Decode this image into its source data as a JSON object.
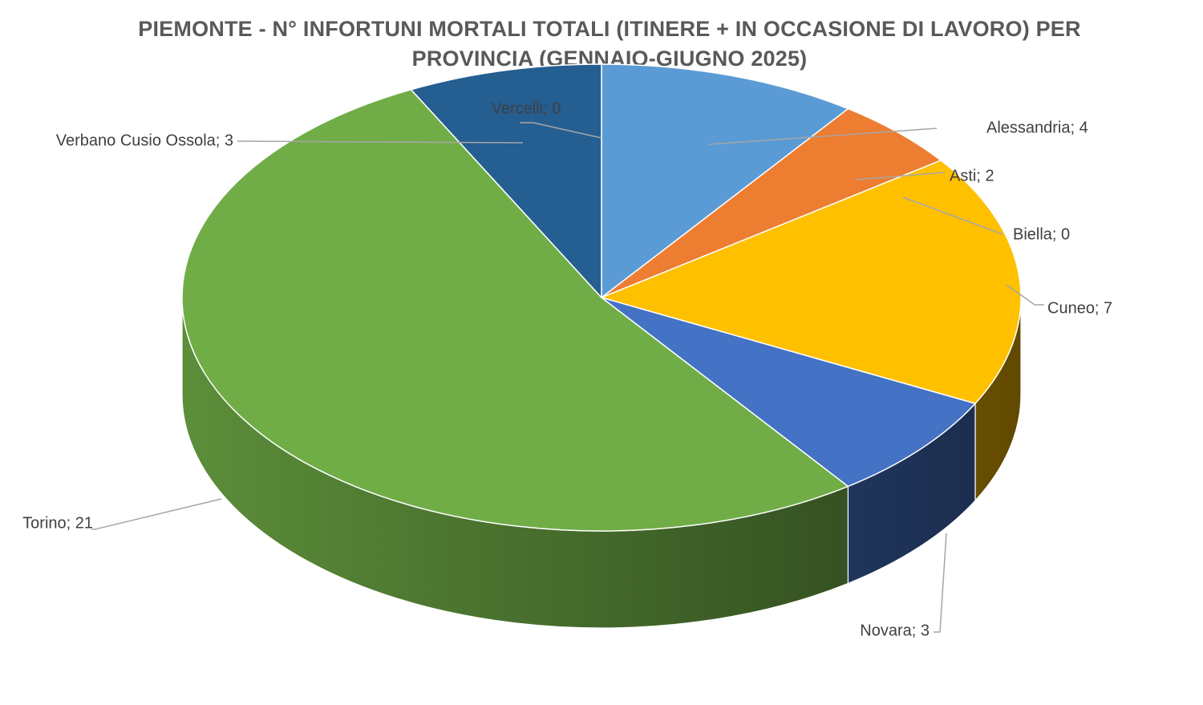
{
  "chart_data": {
    "type": "pie",
    "title_lines": [
      "PIEMONTE - N° INFORTUNI MORTALI TOTALI (ITINERE + IN OCCASIONE DI LAVORO) PER",
      "PROVINCIA (GENNAIO-GIUGNO 2025)"
    ],
    "label_separator": "; ",
    "three_d": true,
    "slices": [
      {
        "name": "Alessandria",
        "value": 4,
        "color": "#5B9BD5"
      },
      {
        "name": "Asti",
        "value": 2,
        "color": "#ED7D31"
      },
      {
        "name": "Biella",
        "value": 0,
        "color": "#A5A5A5"
      },
      {
        "name": "Cuneo",
        "value": 7,
        "color": "#FFC000"
      },
      {
        "name": "Novara",
        "value": 3,
        "color": "#4472C4"
      },
      {
        "name": "Torino",
        "value": 21,
        "color": "#70AD47"
      },
      {
        "name": "Verbano Cusio Ossola",
        "value": 3,
        "color": "#255E91"
      },
      {
        "name": "Vercelli",
        "value": 0,
        "color": "#9E480E"
      }
    ]
  }
}
